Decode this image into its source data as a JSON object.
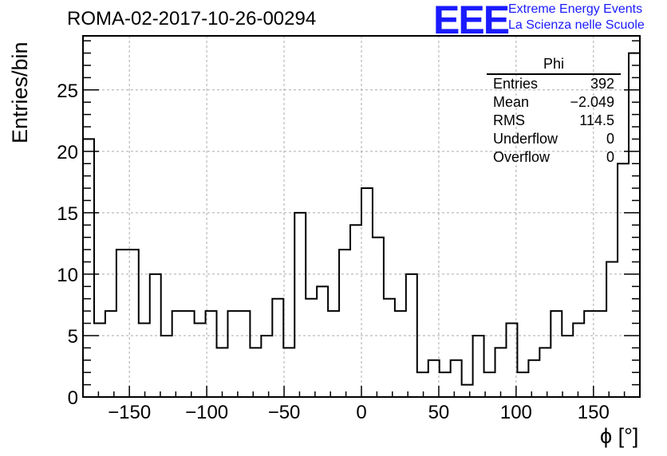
{
  "title": "ROMA-02-2017-10-26-00294",
  "logo": {
    "mark": "EEE",
    "line1": "Extreme Energy Events",
    "line2": "La Scienza nelle Scuole",
    "color": "#1a1aff"
  },
  "stats": {
    "name": "Phi",
    "rows": [
      {
        "label": "Entries",
        "value": "392"
      },
      {
        "label": "Mean",
        "value": "−2.049"
      },
      {
        "label": "RMS",
        "value": "114.5"
      },
      {
        "label": "Underflow",
        "value": "0"
      },
      {
        "label": "Overflow",
        "value": "0"
      }
    ]
  },
  "chart_data": {
    "type": "bar",
    "title": "ROMA-02-2017-10-26-00294",
    "xlabel": "ϕ [°]",
    "ylabel": "Entries/bin",
    "xlim": [
      -180,
      180
    ],
    "ylim": [
      0,
      29.4
    ],
    "bin_width": 7.2,
    "values": [
      21,
      6,
      7,
      12,
      12,
      6,
      10,
      5,
      7,
      7,
      6,
      7,
      4,
      7,
      7,
      4,
      5,
      8,
      4,
      15,
      8,
      9,
      7,
      12,
      14,
      17,
      13,
      8,
      7,
      10,
      2,
      3,
      2,
      3,
      1,
      5,
      2,
      4,
      6,
      2,
      3,
      4,
      7,
      5,
      6,
      7,
      7,
      11,
      19,
      28
    ],
    "xticks": [
      -150,
      -100,
      -50,
      0,
      50,
      100,
      150
    ],
    "xtick_labels": [
      "−150",
      "−100",
      "−50",
      "0",
      "50",
      "100",
      "150"
    ],
    "yticks": [
      0,
      5,
      10,
      15,
      20,
      25
    ],
    "ytick_labels": [
      "0",
      "5",
      "10",
      "15",
      "20",
      "25"
    ],
    "grid": true,
    "line_color": "#000000"
  }
}
